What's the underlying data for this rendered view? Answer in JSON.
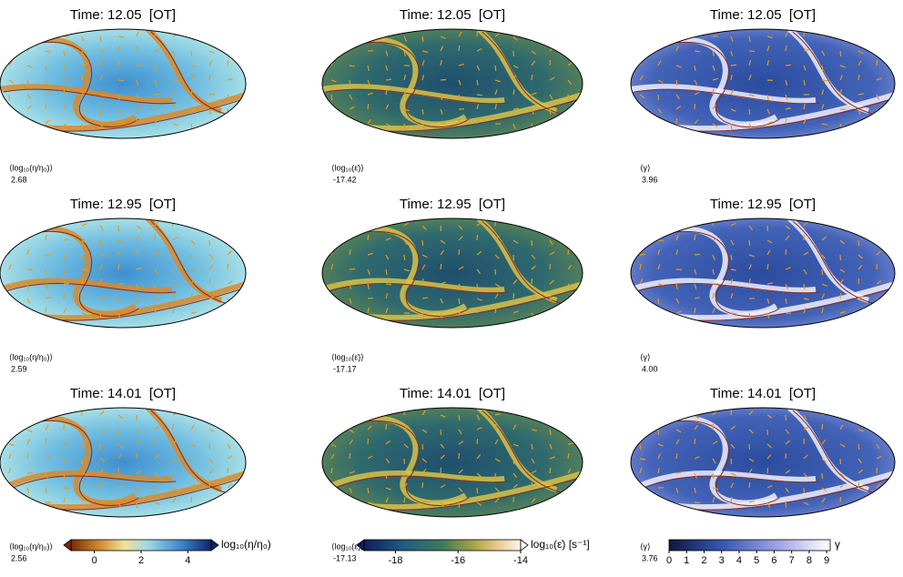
{
  "panels": [
    {
      "title": "Time: 12.05  [OT]",
      "label": "⟨log₁₀(η/η₀)⟩",
      "value": "2.68"
    },
    {
      "title": "Time: 12.05  [OT]",
      "label": "⟨log₁₀(ε̇)⟩",
      "value": "-17.42"
    },
    {
      "title": "Time: 12.05  [OT]",
      "label": "⟨γ⟩",
      "value": "3.96"
    },
    {
      "title": "Time: 12.95  [OT]",
      "label": "⟨log₁₀(η/η₀)⟩",
      "value": "2.59"
    },
    {
      "title": "Time: 12.95  [OT]",
      "label": "⟨log₁₀(ε̇)⟩",
      "value": "-17.17"
    },
    {
      "title": "Time: 12.95  [OT]",
      "label": "⟨γ⟩",
      "value": "4.00"
    },
    {
      "title": "Time: 14.01  [OT]",
      "label": "⟨log₁₀(η/η₀)⟩",
      "value": "2.56"
    },
    {
      "title": "Time: 14.01  [OT]",
      "label": "⟨log₁₀(ε̇)⟩",
      "value": "-17.13"
    },
    {
      "title": "Time: 14.01  [OT]",
      "label": "⟨γ⟩",
      "value": "3.76"
    }
  ],
  "colorbars": [
    {
      "label": "log₁₀(η/η₀)",
      "range": [
        -1,
        5
      ],
      "ticks": [
        0,
        2,
        4
      ]
    },
    {
      "label": "log₁₀(ε̇) [s⁻¹]",
      "range": [
        -19,
        -14
      ],
      "ticks": [
        -18,
        -16,
        -14
      ]
    },
    {
      "label": "γ",
      "range": [
        0,
        9.2
      ],
      "ticks": [
        0,
        1,
        2,
        3,
        4,
        5,
        6,
        7,
        8,
        9
      ]
    }
  ]
}
